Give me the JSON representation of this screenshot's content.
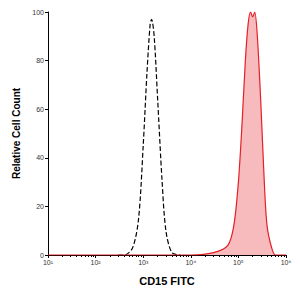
{
  "chart_data": {
    "type": "line",
    "x_label": "CD15 FITC",
    "y_label": "Relative Cell Count",
    "log": "x",
    "grid": false,
    "xlim": [
      10,
      1000000
    ],
    "xticks": [
      {
        "value": 10,
        "label": "10¹"
      },
      {
        "value": 100,
        "label": "10²"
      },
      {
        "value": 1000,
        "label": "10³"
      },
      {
        "value": 10000,
        "label": "10⁴"
      },
      {
        "value": 100000,
        "label": "10⁵"
      },
      {
        "value": 1000000,
        "label": "10⁶"
      }
    ],
    "ylim": [
      0,
      100
    ],
    "yticks": [
      0,
      20,
      40,
      60,
      80,
      100
    ],
    "series": [
      {
        "type": "line",
        "color": "#000000",
        "line_style": "dashed",
        "x": [
          300,
          400,
          600,
          800,
          1000,
          1200,
          1400,
          1500,
          1700,
          2000,
          2500,
          3000,
          4000,
          6000
        ],
        "values": [
          0,
          0,
          3,
          15,
          45,
          75,
          95,
          97,
          90,
          65,
          30,
          10,
          1,
          0
        ]
      },
      {
        "type": "area",
        "color": "#e41f26",
        "line_style": "solid",
        "x": [
          10,
          10000,
          30000,
          60000,
          80000,
          100000,
          120000,
          140000,
          160000,
          180000,
          200000,
          220000,
          250000,
          300000,
          350000,
          400000,
          500000,
          600000,
          1000000
        ],
        "values": [
          0,
          0,
          1,
          4,
          12,
          30,
          55,
          80,
          95,
          100,
          98,
          100,
          90,
          60,
          30,
          12,
          3,
          0,
          0
        ]
      }
    ]
  }
}
